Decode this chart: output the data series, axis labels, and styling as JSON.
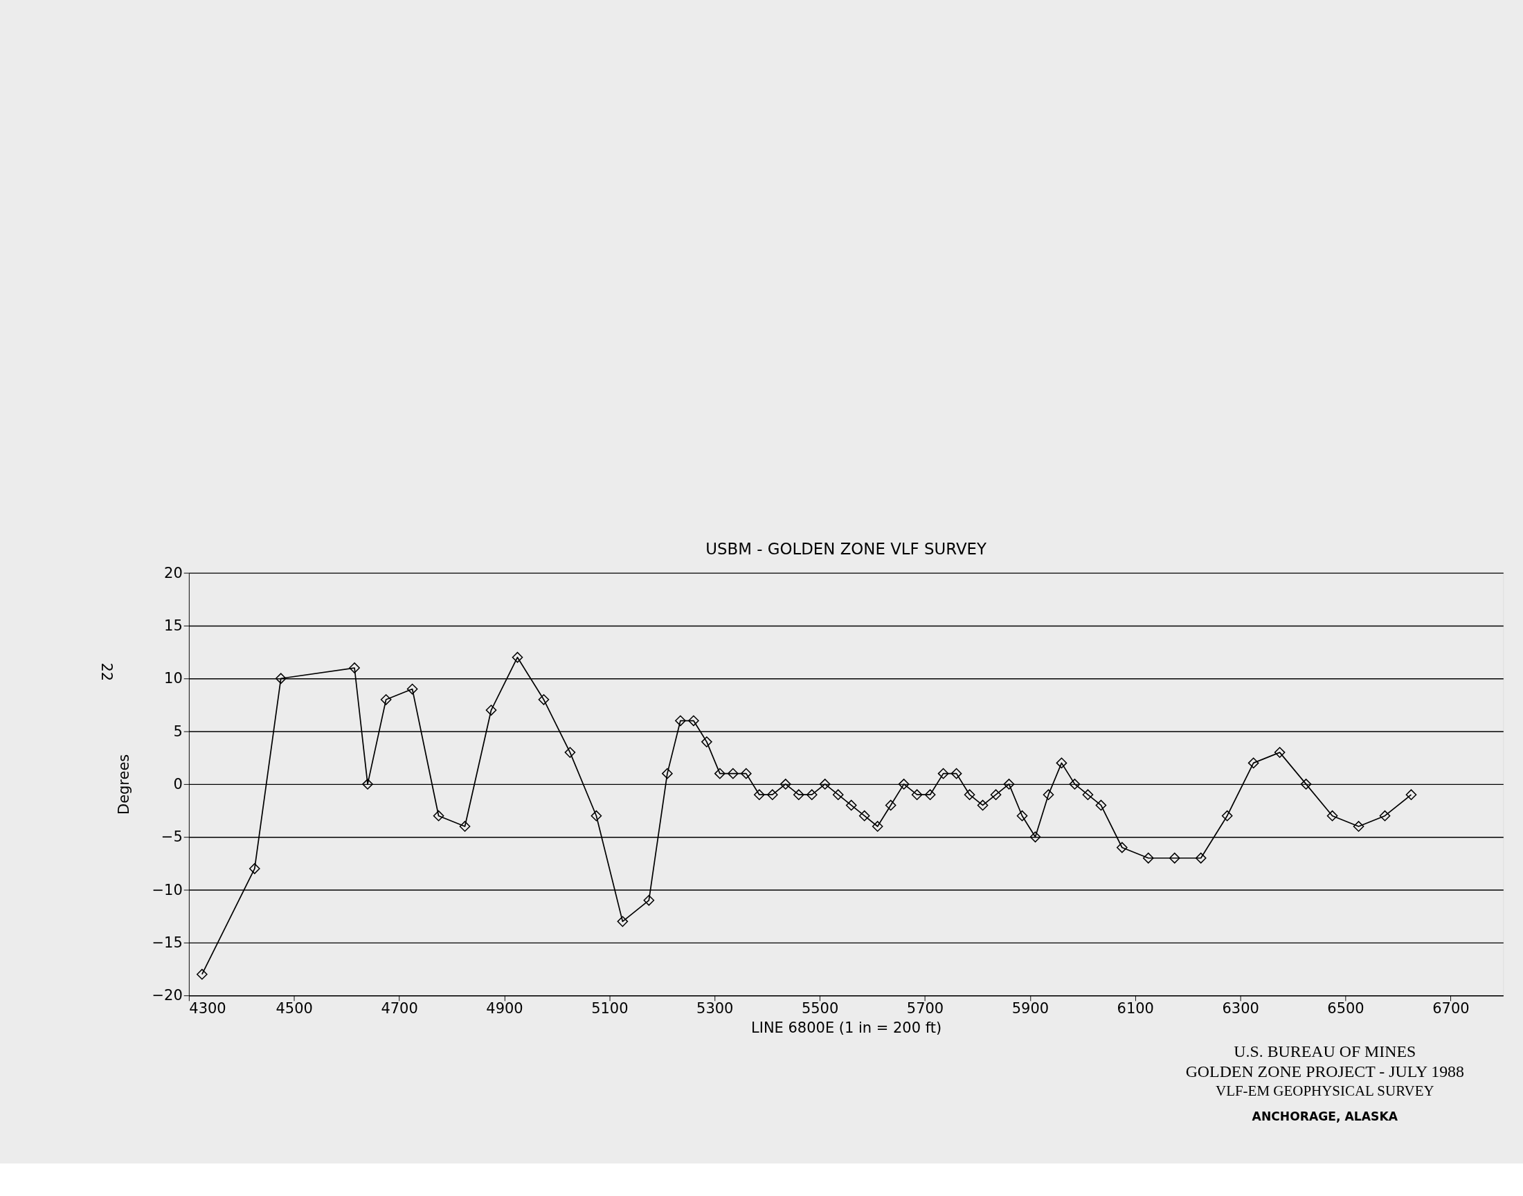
{
  "chart_data": {
    "type": "line",
    "title": "USBM - GOLDEN ZONE VLF SURVEY",
    "xlabel": "LINE 6800E   (1 in = 200 ft)",
    "ylabel": "Degrees",
    "x": [
      4325,
      4425,
      4475,
      4615,
      4640,
      4675,
      4725,
      4775,
      4825,
      4875,
      4925,
      4975,
      5025,
      5075,
      5125,
      5175,
      5210,
      5235,
      5260,
      5285,
      5310,
      5335,
      5360,
      5385,
      5410,
      5435,
      5460,
      5485,
      5510,
      5535,
      5560,
      5585,
      5610,
      5635,
      5660,
      5685,
      5710,
      5735,
      5760,
      5785,
      5810,
      5835,
      5860,
      5885,
      5910,
      5935,
      5960,
      5985,
      6010,
      6035,
      6075,
      6125,
      6175,
      6225,
      6275,
      6325,
      6375,
      6425,
      6475,
      6525,
      6575,
      6625
    ],
    "series": [
      {
        "color": "#000000",
        "values": [
          -18,
          -8,
          10,
          11,
          0,
          8,
          9,
          -3,
          -4,
          7,
          12,
          8,
          3,
          -3,
          -13,
          -11,
          1,
          6,
          6,
          4,
          1,
          1,
          1,
          -1,
          -1,
          0,
          -1,
          -1,
          0,
          -1,
          -2,
          -3,
          -4,
          -2,
          0,
          -1,
          -1,
          1,
          1,
          -1,
          -2,
          -1,
          0,
          -3,
          -5,
          -1,
          2,
          0,
          -1,
          -2,
          -6,
          -7,
          -7,
          -7,
          -3,
          2,
          3,
          0,
          -3,
          -4,
          -3,
          -1
        ]
      }
    ],
    "xlim": [
      4300,
      6800
    ],
    "xticks": [
      4300,
      4500,
      4700,
      4900,
      5100,
      5300,
      5500,
      5700,
      5900,
      6100,
      6300,
      6500,
      6700
    ],
    "ylim": [
      -20,
      20
    ],
    "yticks": [
      -20,
      -15,
      -10,
      -5,
      0,
      5,
      10,
      15,
      20
    ],
    "grid": "y",
    "marker": "diamond",
    "line_style": "solid",
    "annotations": [
      "U.S. BUREAU OF MINES",
      "GOLDEN ZONE PROJECT  -  JULY 1988",
      "VLF-EM  GEOPHYSICAL SURVEY",
      "ANCHORAGE, ALASKA",
      "22"
    ]
  }
}
